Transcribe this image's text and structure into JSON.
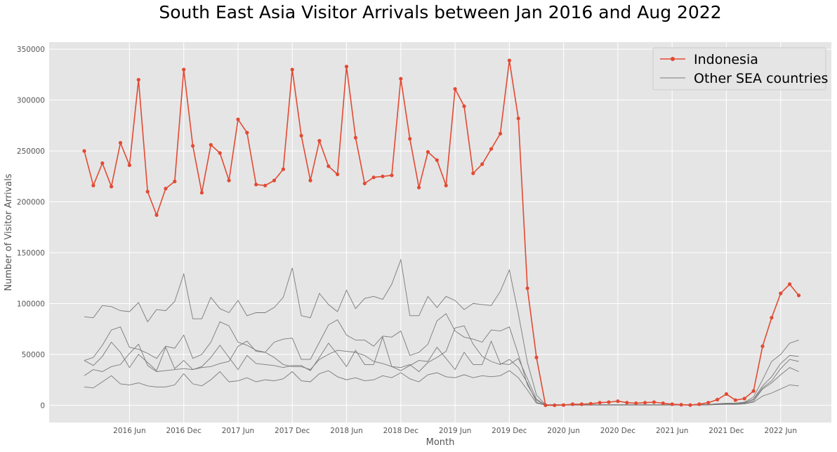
{
  "chart_data": {
    "type": "line",
    "title": "South East Asia Visitor Arrivals between Jan 2016 and Aug 2022",
    "xlabel": "Month",
    "ylabel": "Number of Visitor Arrivals",
    "ylim": [
      -17000,
      357000
    ],
    "yticks": [
      0,
      50000,
      100000,
      150000,
      200000,
      250000,
      300000,
      350000
    ],
    "xticks": [
      {
        "label": "2016 Jun",
        "i": 5
      },
      {
        "label": "2016 Dec",
        "i": 11
      },
      {
        "label": "2017 Jun",
        "i": 17
      },
      {
        "label": "2017 Dec",
        "i": 23
      },
      {
        "label": "2018 Jun",
        "i": 29
      },
      {
        "label": "2018 Dec",
        "i": 35
      },
      {
        "label": "2019 Jun",
        "i": 41
      },
      {
        "label": "2019 Dec",
        "i": 47
      },
      {
        "label": "2020 Jun",
        "i": 53
      },
      {
        "label": "2020 Dec",
        "i": 59
      },
      {
        "label": "2021 Jun",
        "i": 65
      },
      {
        "label": "2021 Dec",
        "i": 71
      },
      {
        "label": "2022 Jun",
        "i": 77
      }
    ],
    "x_range": [
      "2016 Jan",
      "2022 Aug"
    ],
    "grid": true,
    "legend": {
      "placement": "top-right",
      "entries": [
        "Indonesia",
        "Other SEA countries"
      ]
    },
    "colors": {
      "indonesia": "#E24A33",
      "others": "#7a7a7a",
      "background": "#E5E5E5",
      "grid": "#ffffff"
    },
    "series": [
      {
        "name": "Indonesia",
        "style": "line-marker",
        "values": [
          250000,
          216000,
          238000,
          215000,
          258000,
          236000,
          320000,
          210000,
          187000,
          213000,
          220000,
          330000,
          255000,
          209000,
          256000,
          248000,
          221000,
          281000,
          268000,
          217000,
          216000,
          221000,
          232000,
          330000,
          265000,
          221000,
          260000,
          235000,
          227000,
          333000,
          263000,
          218000,
          224000,
          225000,
          226000,
          321000,
          262000,
          214000,
          249000,
          241000,
          216000,
          311000,
          294000,
          228000,
          237000,
          252000,
          267000,
          339000,
          282000,
          115000,
          47000,
          0,
          0,
          200,
          1000,
          1000,
          1500,
          2500,
          3000,
          4000,
          2500,
          2000,
          2500,
          3000,
          2000,
          1000,
          500,
          200,
          1000,
          2500,
          5500,
          11000,
          5000,
          6500,
          14000,
          58000,
          86000,
          110000,
          119000,
          108000
        ]
      },
      {
        "name": "Other SEA countries",
        "style": "thin",
        "values": [
          87000,
          86000,
          98000,
          97000,
          93000,
          92000,
          101000,
          82000,
          94000,
          93000,
          102000,
          129000,
          85000,
          85000,
          106000,
          95000,
          91000,
          103000,
          88000,
          91000,
          91000,
          96000,
          106000,
          135000,
          88000,
          86000,
          110000,
          99000,
          92000,
          113000,
          95000,
          105000,
          107000,
          104000,
          119000,
          143000,
          88000,
          88000,
          107000,
          96000,
          107000,
          103000,
          94000,
          100000,
          99000,
          98000,
          112000,
          133000,
          90000,
          42000,
          10000,
          500,
          500,
          500,
          500,
          500,
          500,
          500,
          500,
          500,
          500,
          500,
          500,
          500,
          500,
          500,
          500,
          500,
          500,
          800,
          1500,
          2000,
          2000,
          3000,
          8000,
          25000,
          43000,
          50000,
          61000,
          64000
        ]
      },
      {
        "name": "Other SEA countries",
        "style": "thin",
        "values": [
          44000,
          47000,
          59000,
          74000,
          77000,
          57000,
          55000,
          51000,
          46000,
          58000,
          56000,
          69000,
          46000,
          50000,
          62000,
          82000,
          78000,
          62000,
          59000,
          54000,
          52000,
          62000,
          65000,
          66000,
          45000,
          45000,
          62000,
          79000,
          84000,
          69000,
          64000,
          64000,
          58000,
          68000,
          67000,
          73000,
          49000,
          52000,
          60000,
          83000,
          90000,
          73000,
          67000,
          65000,
          62000,
          74000,
          73000,
          77000,
          50000,
          20000,
          5000,
          300,
          300,
          300,
          300,
          300,
          300,
          300,
          300,
          300,
          300,
          300,
          300,
          300,
          300,
          300,
          300,
          300,
          300,
          500,
          1000,
          1500,
          1500,
          2500,
          6000,
          19000,
          28000,
          41000,
          49000,
          48000
        ]
      },
      {
        "name": "Other SEA countries",
        "style": "thin",
        "values": [
          44000,
          39000,
          48000,
          62000,
          52000,
          37000,
          50000,
          42000,
          34000,
          57000,
          36000,
          44000,
          35000,
          38000,
          47000,
          59000,
          47000,
          35000,
          49000,
          41000,
          40000,
          39000,
          37000,
          39000,
          39000,
          34000,
          47000,
          61000,
          50000,
          38000,
          54000,
          40000,
          40000,
          67000,
          38000,
          34000,
          39000,
          44000,
          43000,
          57000,
          46000,
          35000,
          52000,
          40000,
          40000,
          63000,
          41000,
          40000,
          46000,
          26000,
          6000,
          300,
          300,
          300,
          300,
          300,
          300,
          300,
          300,
          300,
          300,
          300,
          300,
          300,
          300,
          300,
          300,
          300,
          300,
          500,
          1000,
          1500,
          1500,
          2500,
          5500,
          17000,
          24000,
          36000,
          45000,
          43000
        ]
      },
      {
        "name": "Other SEA countries",
        "style": "thin",
        "values": [
          29000,
          35000,
          33000,
          38000,
          40000,
          51000,
          60000,
          39000,
          33000,
          34000,
          35000,
          36000,
          35000,
          37000,
          38000,
          41000,
          43000,
          58000,
          63000,
          53000,
          52000,
          47000,
          40000,
          38000,
          38000,
          35000,
          45000,
          50000,
          54000,
          53000,
          52000,
          49000,
          43000,
          41000,
          38000,
          37000,
          40000,
          33000,
          42000,
          47000,
          53000,
          76000,
          78000,
          60000,
          48000,
          43000,
          40000,
          45000,
          37000,
          22000,
          3000,
          200,
          200,
          200,
          200,
          200,
          200,
          200,
          200,
          200,
          200,
          200,
          200,
          200,
          200,
          200,
          200,
          200,
          200,
          400,
          800,
          1000,
          1200,
          2000,
          4000,
          16000,
          22000,
          30000,
          37000,
          33000
        ]
      },
      {
        "name": "Other SEA countries",
        "style": "thin",
        "values": [
          18000,
          17000,
          23000,
          29000,
          21000,
          20000,
          22000,
          19000,
          18000,
          18000,
          20000,
          31000,
          21000,
          19000,
          25000,
          33000,
          23000,
          24000,
          27000,
          23000,
          25000,
          24000,
          26000,
          33000,
          24000,
          23000,
          31000,
          34000,
          28000,
          25000,
          27000,
          24000,
          25000,
          29000,
          27000,
          32000,
          26000,
          23000,
          30000,
          32000,
          28000,
          27000,
          30000,
          27000,
          29000,
          28000,
          29000,
          34000,
          27000,
          15000,
          2000,
          100,
          100,
          100,
          100,
          100,
          100,
          100,
          100,
          100,
          100,
          100,
          100,
          100,
          100,
          100,
          100,
          100,
          100,
          300,
          500,
          800,
          800,
          1200,
          3000,
          9000,
          12000,
          16000,
          20000,
          19000
        ]
      }
    ]
  }
}
